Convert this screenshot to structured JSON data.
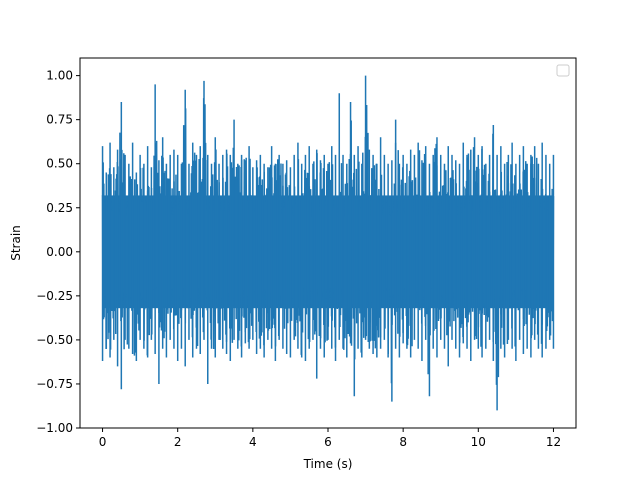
{
  "chart_data": {
    "type": "line",
    "title": "",
    "xlabel": "Time (s)",
    "ylabel": "Strain",
    "xlim": [
      -0.6,
      12.6
    ],
    "ylim": [
      -1.0,
      1.1
    ],
    "x_ticks": [
      0,
      2,
      4,
      6,
      8,
      10,
      12
    ],
    "x_tick_labels": [
      "0",
      "2",
      "4",
      "6",
      "8",
      "10",
      "12"
    ],
    "y_ticks": [
      -1.0,
      -0.75,
      -0.5,
      -0.25,
      0.0,
      0.25,
      0.5,
      0.75,
      1.0
    ],
    "y_tick_labels": [
      "−1.00",
      "−0.75",
      "−0.50",
      "−0.25",
      "0.00",
      "0.25",
      "0.50",
      "0.75",
      "1.00"
    ],
    "grid": false,
    "legend": "top-right (empty)",
    "series": [
      {
        "color": "#1f77b4",
        "x_range": [
          0,
          12
        ],
        "x": [
          0.0,
          0.1,
          0.2,
          0.3,
          0.4,
          0.5,
          0.6,
          0.7,
          0.8,
          0.9,
          1.0,
          1.1,
          1.2,
          1.3,
          1.4,
          1.5,
          1.6,
          1.7,
          1.8,
          1.9,
          2.0,
          2.1,
          2.2,
          2.3,
          2.4,
          2.5,
          2.6,
          2.7,
          2.8,
          2.9,
          3.0,
          3.1,
          3.2,
          3.3,
          3.4,
          3.5,
          3.6,
          3.7,
          3.8,
          3.9,
          4.0,
          4.1,
          4.2,
          4.3,
          4.4,
          4.5,
          4.6,
          4.7,
          4.8,
          4.9,
          5.0,
          5.1,
          5.2,
          5.3,
          5.4,
          5.5,
          5.6,
          5.7,
          5.8,
          5.9,
          6.0,
          6.1,
          6.2,
          6.3,
          6.4,
          6.5,
          6.6,
          6.7,
          6.8,
          6.9,
          7.0,
          7.1,
          7.2,
          7.3,
          7.4,
          7.5,
          7.6,
          7.7,
          7.8,
          7.9,
          8.0,
          8.1,
          8.2,
          8.3,
          8.4,
          8.5,
          8.6,
          8.7,
          8.8,
          8.9,
          9.0,
          9.1,
          9.2,
          9.3,
          9.4,
          9.5,
          9.6,
          9.7,
          9.8,
          9.9,
          10.0,
          10.1,
          10.2,
          10.3,
          10.4,
          10.5,
          10.6,
          10.7,
          10.8,
          10.9,
          11.0,
          11.1,
          11.2,
          11.3,
          11.4,
          11.5,
          11.6,
          11.7,
          11.8,
          11.9,
          12.0
        ],
        "upper": [
          0.6,
          0.45,
          0.62,
          0.48,
          0.58,
          0.85,
          0.55,
          0.5,
          0.62,
          0.45,
          0.55,
          0.5,
          0.6,
          0.48,
          0.95,
          0.52,
          0.65,
          0.5,
          0.55,
          0.58,
          0.55,
          0.5,
          0.92,
          0.5,
          0.62,
          0.55,
          0.6,
          0.97,
          0.55,
          0.5,
          0.65,
          0.5,
          0.55,
          0.58,
          0.55,
          0.75,
          0.5,
          0.55,
          0.52,
          0.6,
          0.48,
          0.52,
          0.55,
          0.5,
          0.48,
          0.6,
          0.5,
          0.55,
          0.5,
          0.52,
          0.48,
          0.55,
          0.62,
          0.5,
          0.55,
          0.6,
          0.5,
          0.58,
          0.52,
          0.55,
          0.5,
          0.6,
          0.55,
          0.9,
          0.55,
          0.5,
          0.85,
          0.55,
          0.6,
          0.5,
          1.0,
          0.58,
          0.55,
          0.5,
          0.65,
          0.55,
          0.5,
          0.52,
          0.75,
          0.5,
          0.55,
          0.5,
          0.58,
          0.55,
          0.62,
          0.52,
          0.6,
          0.5,
          0.55,
          0.65,
          0.55,
          0.5,
          0.6,
          0.55,
          0.52,
          0.5,
          0.62,
          0.55,
          0.58,
          0.65,
          0.55,
          0.6,
          0.5,
          0.55,
          0.72,
          0.55,
          0.6,
          0.5,
          0.55,
          0.62,
          0.5,
          0.55,
          0.6,
          0.5,
          0.55,
          0.6,
          0.5,
          0.62,
          0.55,
          0.5,
          0.55
        ],
        "lower": [
          -0.62,
          -0.55,
          -0.6,
          -0.5,
          -0.65,
          -0.78,
          -0.5,
          -0.55,
          -0.58,
          -0.62,
          -0.5,
          -0.55,
          -0.6,
          -0.5,
          -0.58,
          -0.75,
          -0.55,
          -0.6,
          -0.5,
          -0.55,
          -0.62,
          -0.55,
          -0.65,
          -0.5,
          -0.6,
          -0.55,
          -0.58,
          -0.5,
          -0.75,
          -0.55,
          -0.6,
          -0.5,
          -0.55,
          -0.58,
          -0.62,
          -0.5,
          -0.55,
          -0.6,
          -0.52,
          -0.55,
          -0.5,
          -0.58,
          -0.55,
          -0.6,
          -0.5,
          -0.55,
          -0.62,
          -0.5,
          -0.55,
          -0.58,
          -0.6,
          -0.5,
          -0.55,
          -0.6,
          -0.62,
          -0.55,
          -0.5,
          -0.72,
          -0.55,
          -0.6,
          -0.5,
          -0.55,
          -0.62,
          -0.5,
          -0.55,
          -0.6,
          -0.52,
          -0.82,
          -0.55,
          -0.6,
          -0.5,
          -0.55,
          -0.58,
          -0.6,
          -0.55,
          -0.5,
          -0.6,
          -0.85,
          -0.55,
          -0.6,
          -0.52,
          -0.55,
          -0.6,
          -0.5,
          -0.55,
          -0.62,
          -0.5,
          -0.82,
          -0.55,
          -0.6,
          -0.5,
          -0.55,
          -0.65,
          -0.5,
          -0.55,
          -0.6,
          -0.52,
          -0.55,
          -0.62,
          -0.5,
          -0.55,
          -0.6,
          -0.55,
          -0.5,
          -0.62,
          -0.9,
          -0.55,
          -0.6,
          -0.5,
          -0.55,
          -0.62,
          -0.5,
          -0.58,
          -0.55,
          -0.6,
          -0.5,
          -0.55,
          -0.6,
          -0.55,
          -0.5,
          -0.55
        ]
      }
    ]
  }
}
